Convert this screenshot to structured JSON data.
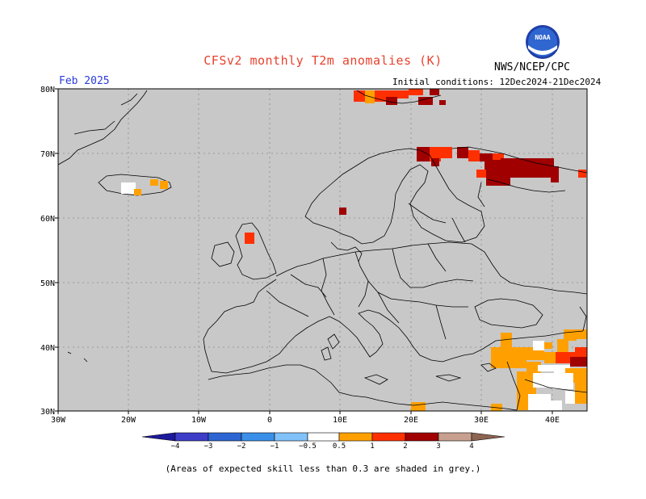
{
  "title": "CFSv2 monthly T2m anomalies (K)",
  "agency": "NWS/NCEP/CPC",
  "logo_text": "NOAA",
  "month": "Feb 2025",
  "initial_conditions": "Initial conditions: 12Dec2024-21Dec2024",
  "lat_labels": [
    "80N",
    "70N",
    "60N",
    "50N",
    "40N",
    "30N"
  ],
  "lon_labels": [
    "30W",
    "20W",
    "10W",
    "0",
    "10E",
    "20E",
    "30E",
    "40E"
  ],
  "legend": {
    "ticks": [
      "−4",
      "−3",
      "−2",
      "−1",
      "−0.5",
      "0.5",
      "1",
      "2",
      "3",
      "4"
    ],
    "colors": [
      "#1e1a9c",
      "#3d3dc8",
      "#2d66d2",
      "#3a90e8",
      "#82c2fa",
      "#ffffff",
      "#ffa000",
      "#ff3000",
      "#a00000",
      "#c8a090",
      "#8c6450"
    ]
  },
  "note": "(Areas of expected skill less than 0.3 are shaded in grey.)",
  "colors": {
    "land_grey": "#c8c8c8",
    "orange": "#ffa000",
    "red": "#ff3000",
    "dark_red": "#a00000",
    "title_red": "#e8412c",
    "month_blue": "#2a3bd8"
  }
}
